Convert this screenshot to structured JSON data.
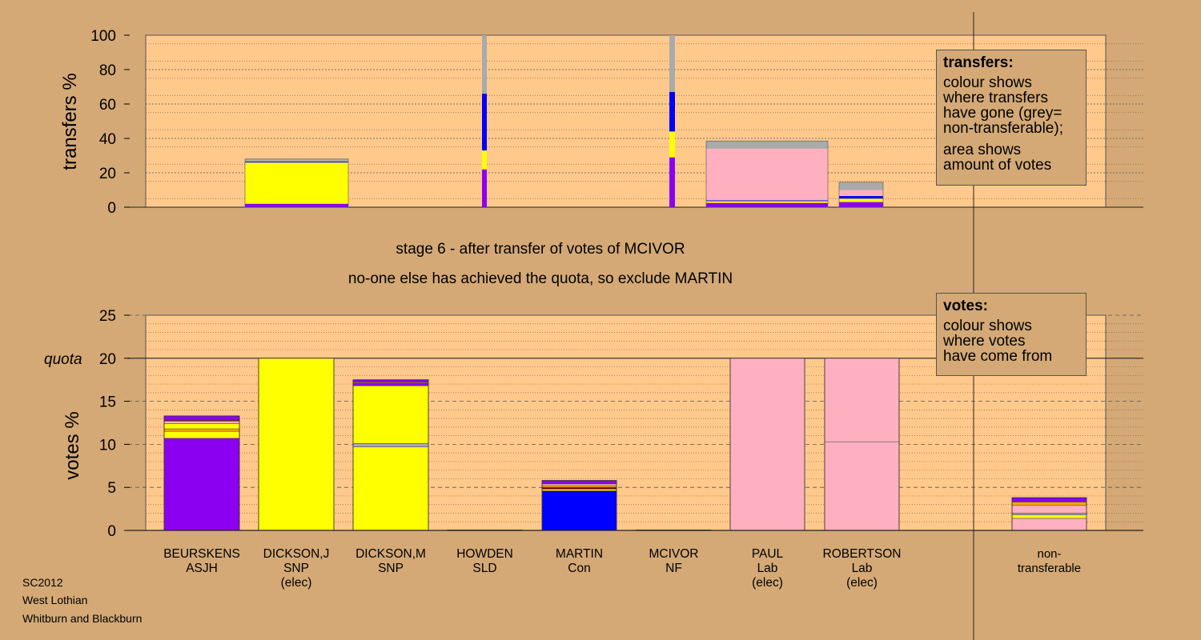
{
  "colors": {
    "background": "#d4a976",
    "plot_area": "#ffc98c",
    "ASJH": "#8b00f0",
    "SNP": "#ffff00",
    "SLD": "#ffa500",
    "Con": "#0000ff",
    "NF": "#800000",
    "Lab": "#ffb0c0",
    "nontransferable": "#aaaaaa"
  },
  "stage_text": "stage 6 - after transfer of votes of MCIVOR",
  "action_text": "no-one else has achieved the quota, so exclude MARTIN",
  "footer": [
    "SC2012",
    "West Lothian",
    "Whitburn and Blackburn"
  ],
  "transfers_note": {
    "heading": "transfers:",
    "para1": [
      "colour shows",
      "where transfers",
      "have gone (grey=",
      "non-transferable);"
    ],
    "para2": [
      "area shows",
      "amount of votes"
    ]
  },
  "votes_note": {
    "heading": "votes:",
    "para1": [
      "colour shows",
      "where votes",
      "have come from"
    ]
  },
  "chart_data": [
    {
      "type": "bar",
      "ylabel": "transfers %",
      "ylim": [
        0,
        100
      ],
      "yticks": [
        0,
        20,
        40,
        60,
        80,
        100
      ],
      "grid": true,
      "bars": [
        {
          "candidate": "DICKSON,J",
          "width_votes": 20,
          "segments": [
            {
              "party": "ASJH",
              "value": 2
            },
            {
              "party": "SNP",
              "value": 24
            },
            {
              "party": "Con",
              "value": 0.5
            },
            {
              "party": "nontransferable",
              "value": 1.5
            }
          ]
        },
        {
          "candidate": "HOWDEN",
          "width_votes": 0.4,
          "segments": [
            {
              "party": "ASJH",
              "value": 22
            },
            {
              "party": "SNP",
              "value": 11
            },
            {
              "party": "Con",
              "value": 33
            },
            {
              "party": "nontransferable",
              "value": 34
            }
          ]
        },
        {
          "candidate": "MCIVOR",
          "width_votes": 0.4,
          "segments": [
            {
              "party": "ASJH",
              "value": 29
            },
            {
              "party": "SNP",
              "value": 15
            },
            {
              "party": "Con",
              "value": 23
            },
            {
              "party": "nontransferable",
              "value": 33
            }
          ]
        },
        {
          "candidate": "PAUL",
          "width_votes": 20,
          "segments": [
            {
              "party": "ASJH",
              "value": 2.5
            },
            {
              "party": "SNP",
              "value": 1
            },
            {
              "party": "Con",
              "value": 0.5
            },
            {
              "party": "Lab",
              "value": 30
            },
            {
              "party": "nontransferable",
              "value": 4.5
            }
          ]
        },
        {
          "candidate": "ROBERTSON",
          "width_votes": 9,
          "segments": [
            {
              "party": "ASJH",
              "value": 3
            },
            {
              "party": "SNP",
              "value": 2
            },
            {
              "party": "Con",
              "value": 1.5
            },
            {
              "party": "Lab",
              "value": 3.5
            },
            {
              "party": "nontransferable",
              "value": 4.5
            }
          ]
        }
      ]
    },
    {
      "type": "bar",
      "ylabel": "votes %",
      "ylim": [
        0,
        25
      ],
      "yticks": [
        0,
        5,
        10,
        15,
        20,
        25
      ],
      "quota": 20,
      "quota_label": "quota",
      "grid": true,
      "categories": [
        {
          "name": "BEURSKENS",
          "party": "ASJH",
          "status": ""
        },
        {
          "name": "DICKSON,J",
          "party": "SNP",
          "status": "(elec)"
        },
        {
          "name": "DICKSON,M",
          "party": "SNP",
          "status": ""
        },
        {
          "name": "HOWDEN",
          "party": "SLD",
          "status": ""
        },
        {
          "name": "MARTIN",
          "party": "Con",
          "status": ""
        },
        {
          "name": "MCIVOR",
          "party": "NF",
          "status": ""
        },
        {
          "name": "PAUL",
          "party": "Lab",
          "status": "(elec)"
        },
        {
          "name": "ROBERTSON",
          "party": "Lab",
          "status": "(elec)"
        },
        {
          "name": "non-",
          "party": "transferable",
          "status": ""
        }
      ],
      "stacks": [
        [
          {
            "party": "ASJH",
            "value": 10.7
          },
          {
            "party": "SNP",
            "value": 0.8
          },
          {
            "party": "SLD",
            "value": 0.3
          },
          {
            "party": "SNP",
            "value": 0.6
          },
          {
            "party": "Lab",
            "value": 0.3
          },
          {
            "party": "NF",
            "value": 0.1
          },
          {
            "party": "ASJH",
            "value": 0.5
          }
        ],
        [
          {
            "party": "SNP",
            "value": 20
          }
        ],
        [
          {
            "party": "SNP",
            "value": 9.7
          },
          {
            "party": "nontransferable",
            "value": 0.4
          },
          {
            "party": "SNP",
            "value": 6.7
          },
          {
            "party": "ASJH",
            "value": 0.3
          },
          {
            "party": "SLD",
            "value": 0.1
          },
          {
            "party": "ASJH",
            "value": 0.3
          }
        ],
        [
          {
            "party": "SLD",
            "value": 0.05
          }
        ],
        [
          {
            "party": "Con",
            "value": 4.6
          },
          {
            "party": "SNP",
            "value": 0.2
          },
          {
            "party": "NF",
            "value": 0.2
          },
          {
            "party": "SLD",
            "value": 0.2
          },
          {
            "party": "Lab",
            "value": 0.2
          },
          {
            "party": "ASJH",
            "value": 0.4
          }
        ],
        [
          {
            "party": "NF",
            "value": 0.05
          }
        ],
        [
          {
            "party": "Lab",
            "value": 20
          }
        ],
        [
          {
            "party": "Lab",
            "value": 10.3
          },
          {
            "party": "Lab",
            "value": 9.7
          }
        ],
        [
          {
            "party": "Lab",
            "value": 1.4
          },
          {
            "party": "SNP",
            "value": 0.4
          },
          {
            "party": "nontransferable",
            "value": 0.2
          },
          {
            "party": "Lab",
            "value": 0.9
          },
          {
            "party": "SLD",
            "value": 0.4
          },
          {
            "party": "ASJH",
            "value": 0.5
          }
        ]
      ]
    }
  ]
}
